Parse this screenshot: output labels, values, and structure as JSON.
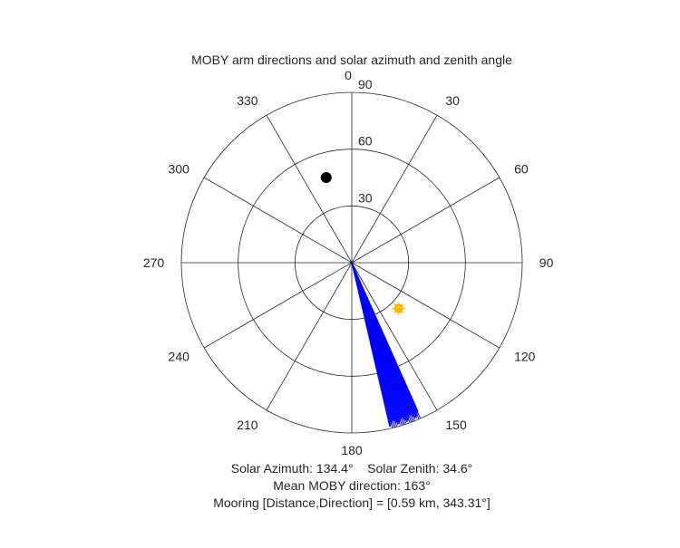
{
  "chart_data": {
    "type": "polar",
    "title": "MOBY arm directions and solar azimuth and zenith angle",
    "theta_zero": "top",
    "theta_direction": "clockwise",
    "theta_ticks": [
      0,
      30,
      60,
      90,
      120,
      150,
      180,
      210,
      240,
      270,
      300,
      330
    ],
    "theta_tick_labels": [
      "0",
      "30",
      "60",
      "90",
      "120",
      "150",
      "180",
      "210",
      "240",
      "270",
      "300",
      "330"
    ],
    "r_ticks": [
      30,
      60,
      90
    ],
    "r_tick_labels": [
      "30",
      "60",
      "90"
    ],
    "rlim": [
      0,
      90
    ],
    "grid": true,
    "series": [
      {
        "kind": "arm-lines",
        "color": "#0000ff",
        "r": 90,
        "theta_range": [
          156,
          167
        ],
        "mean_direction": 163
      },
      {
        "kind": "sun-marker",
        "color": "#ffc000",
        "theta": 134.4,
        "r": 34.6
      },
      {
        "kind": "mooring-marker",
        "color": "#000000",
        "theta": 343.31,
        "r": 47
      }
    ],
    "annotations": {
      "line1": "Solar Azimuth: 134.4°    Solar Zenith: 34.6°",
      "line2": "Mean MOBY direction: 163°",
      "line3": "Mooring [Distance,Direction] = [0.59 km, 343.31°]"
    },
    "colors": {
      "grid": "#262626",
      "text": "#262626"
    }
  }
}
